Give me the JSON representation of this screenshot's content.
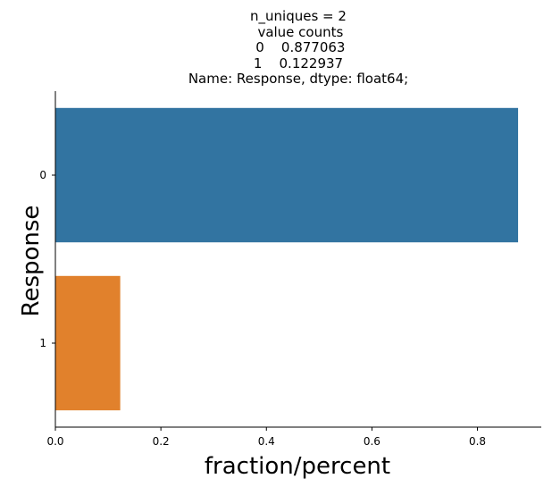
{
  "chart_data": {
    "type": "bar",
    "orientation": "horizontal",
    "title_lines": [
      "n_uniques = 2",
      " value counts",
      " 0    0.877063",
      "1    0.122937",
      "Name: Response, dtype: float64;"
    ],
    "xlabel": "fraction/percent",
    "ylabel": "Response",
    "categories": [
      "0",
      "1"
    ],
    "values": [
      0.877063,
      0.122937
    ],
    "colors": [
      "#3274a1",
      "#e1812c"
    ],
    "xlim": [
      0,
      0.921
    ],
    "xticks": [
      0.0,
      0.2,
      0.4,
      0.6,
      0.8
    ],
    "xtick_labels": [
      "0.0",
      "0.2",
      "0.4",
      "0.6",
      "0.8"
    ],
    "grid": false,
    "legend": "none"
  }
}
